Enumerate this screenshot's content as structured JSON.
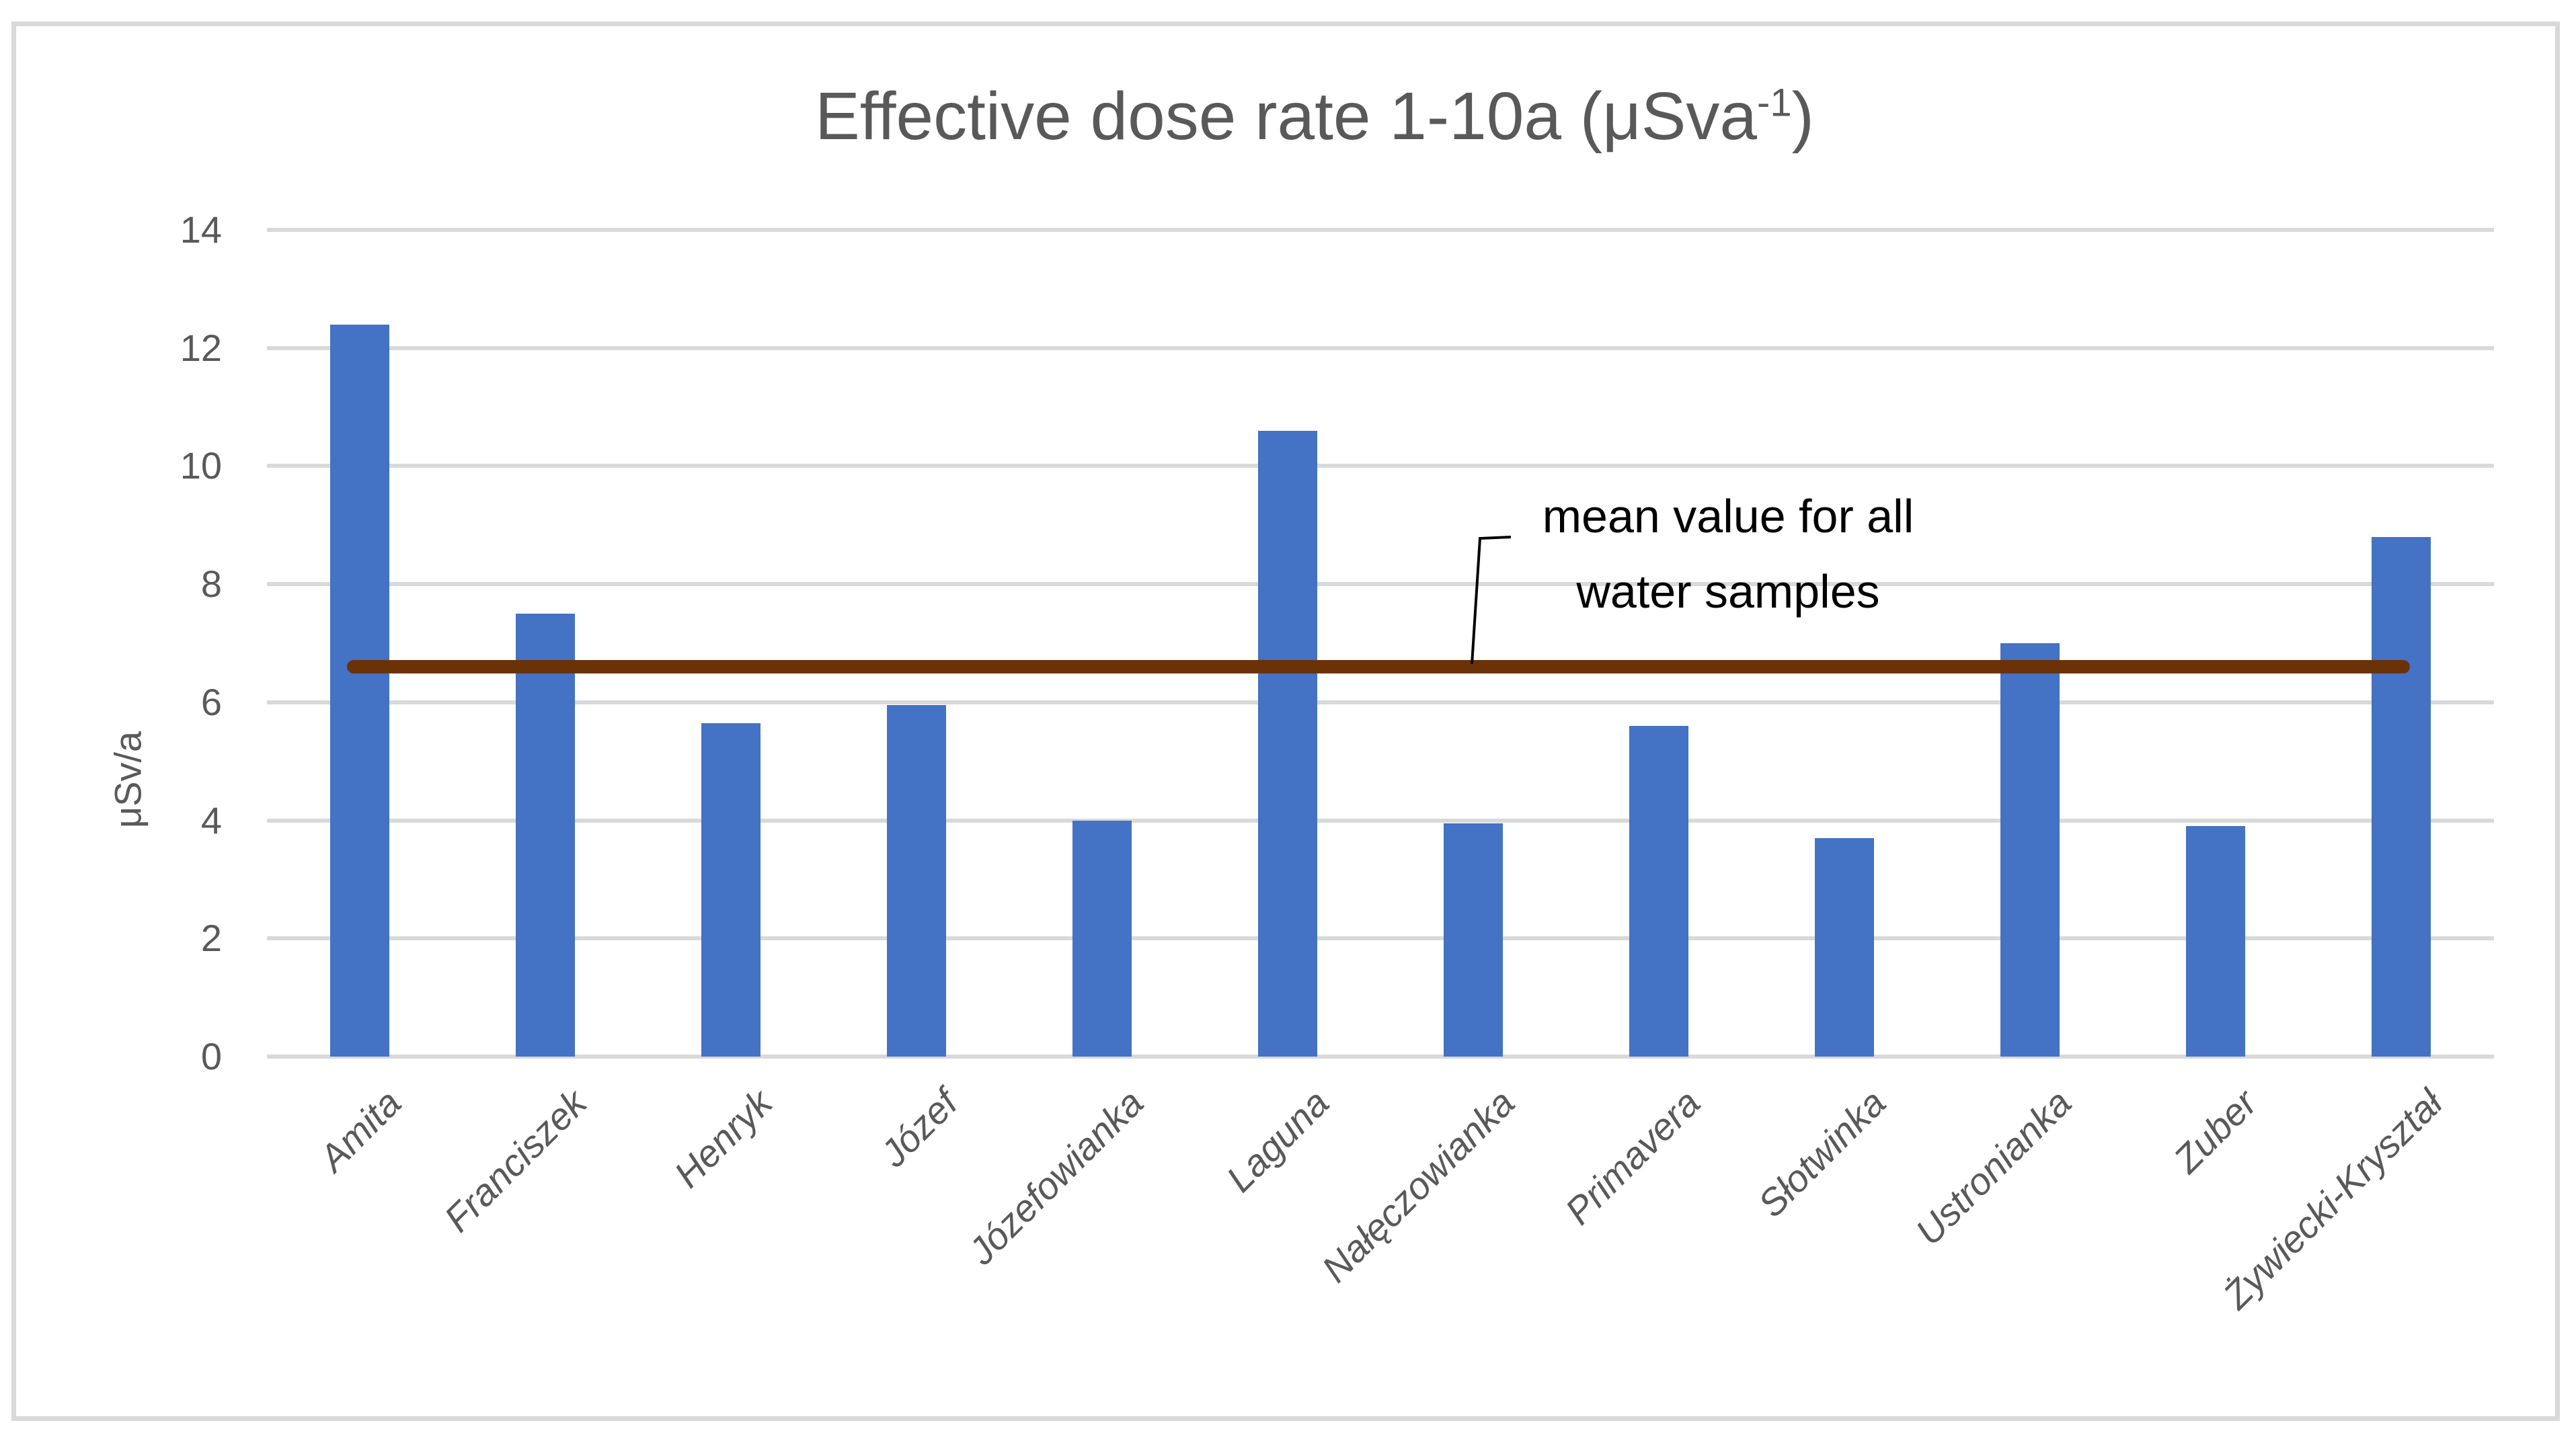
{
  "chart_data": {
    "type": "bar",
    "title": {
      "main": "Effective dose rate 1-10a (μSva",
      "superscript": "-1",
      "suffix": ")"
    },
    "ylabel": "μSv/a",
    "xlabel": "",
    "categories": [
      "Amita",
      "Franciszek",
      "Henryk",
      "Józef",
      "Józefowianka",
      "Laguna",
      "Nałęczowianka",
      "Primavera",
      "Słotwinka",
      "Ustronianka",
      "Zuber",
      "Żywiecki-Kryształ"
    ],
    "values": [
      12.4,
      7.5,
      5.65,
      5.95,
      4.0,
      10.6,
      3.95,
      5.6,
      3.7,
      7.0,
      3.9,
      8.8
    ],
    "mean_line": {
      "value": 6.6,
      "label_line1": "mean value for all",
      "label_line2": "water samples"
    },
    "yticks": [
      0,
      2,
      4,
      6,
      8,
      10,
      12,
      14
    ],
    "ylim": [
      0,
      14
    ],
    "grid": true,
    "legend": "none",
    "colors": {
      "bar": "#4472C4",
      "mean_line": "#6B3208",
      "gridline": "#D9D9D9",
      "axis_text": "#595959",
      "annotation_text": "#000000",
      "frame_border": "#D9D9D9"
    }
  }
}
